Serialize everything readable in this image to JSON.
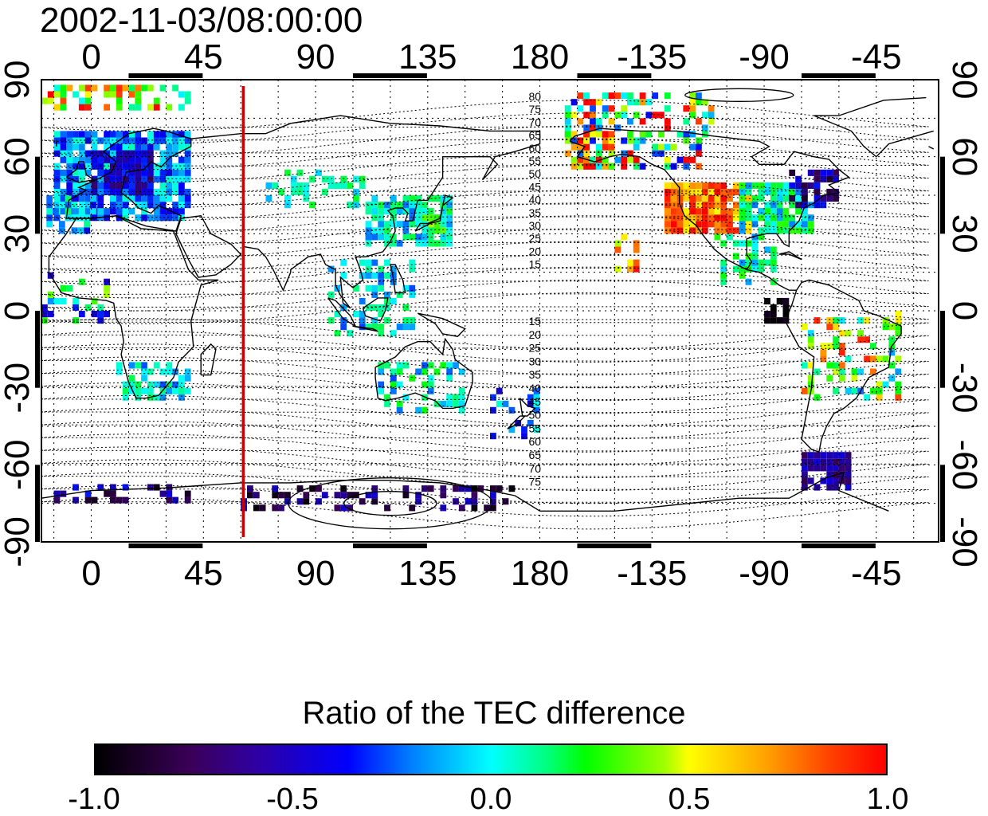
{
  "map": {
    "timestamp": "2002-11-03/08:00:00",
    "top_lon_ticks": [
      "0",
      "45",
      "90",
      "135",
      "180",
      "-135",
      "-90",
      "-45"
    ],
    "bottom_lon_ticks": [
      "0",
      "45",
      "90",
      "135",
      "180",
      "-135",
      "-90",
      "-45"
    ],
    "left_lat_ticks": [
      "90",
      "60",
      "30",
      "0",
      "-30",
      "-60",
      "-90"
    ],
    "right_lat_ticks": [
      "90",
      "60",
      "30",
      "0",
      "-30",
      "-60",
      "-90"
    ],
    "north_contour_labels": [
      "80",
      "75",
      "70",
      "65",
      "60",
      "55",
      "50",
      "45",
      "40",
      "35",
      "30",
      "25",
      "20",
      "15"
    ],
    "south_contour_labels": [
      "15",
      "20",
      "25",
      "30",
      "35",
      "40",
      "45",
      "50",
      "55",
      "60",
      "65",
      "70",
      "75"
    ],
    "marker_line_longitude": 61,
    "marker_line_color": "#cc0000"
  },
  "colorbar": {
    "title": "Ratio of the TEC difference",
    "ticks": [
      "-1.0",
      "-0.5",
      "0.0",
      "0.5",
      "1.0"
    ],
    "colormap": [
      "#000000",
      "#3a0058",
      "#0000ff",
      "#00ffff",
      "#00ff00",
      "#ffff00",
      "#ff0000"
    ]
  }
}
